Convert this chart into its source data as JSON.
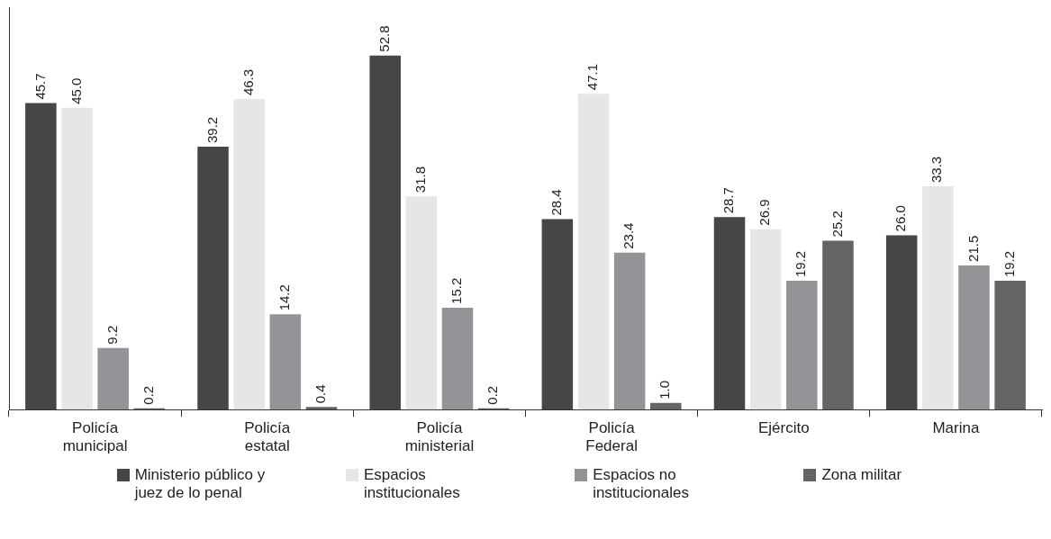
{
  "chart_data": {
    "type": "bar",
    "categories": [
      "Policía municipal",
      "Policía estatal",
      "Policía ministerial",
      "Policía Federal",
      "Ejército",
      "Marina"
    ],
    "series": [
      {
        "name": "Ministerio público y juez de lo penal",
        "color": "#464646",
        "values": [
          45.7,
          39.2,
          52.8,
          28.4,
          28.7,
          26.0
        ],
        "value_labels": [
          "45.7",
          "39.2",
          "52.8",
          "28.4",
          "28.7",
          "26.0"
        ]
      },
      {
        "name": "Espacios institucionales",
        "color": "#e6e6e7",
        "values": [
          45.0,
          46.3,
          31.8,
          47.1,
          26.9,
          33.3
        ],
        "value_labels": [
          "45.0",
          "46.3",
          "31.8",
          "47.1",
          "26.9",
          "33.3"
        ]
      },
      {
        "name": "Espacios no institucionales",
        "color": "#939497",
        "values": [
          9.2,
          14.2,
          15.2,
          23.4,
          19.2,
          21.5
        ],
        "value_labels": [
          "9.2",
          "14.2",
          "15.2",
          "23.4",
          "19.2",
          "21.5"
        ]
      },
      {
        "name": "Zona militar",
        "color": "#636466",
        "values": [
          0.2,
          0.4,
          0.2,
          1.0,
          25.2,
          19.2
        ],
        "value_labels": [
          "0.2",
          "0.4",
          "0.2",
          "1.0",
          "25.2",
          "19.2"
        ]
      }
    ],
    "legend": "bottom",
    "grid": false,
    "tick_labels": "x"
  }
}
